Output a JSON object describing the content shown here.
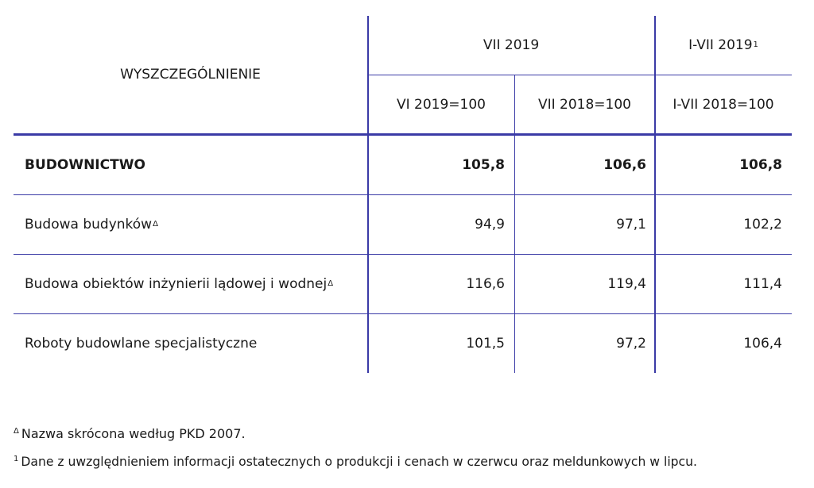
{
  "table": {
    "header": {
      "stub": "WYSZCZEGÓLNIENIE",
      "group_label": "VII 2019",
      "cumulative_label": "I-VII 2019",
      "cumulative_mark": "1",
      "col1": "VI 2019=100",
      "col2": "VII 2018=100",
      "col3": "I-VII 2018=100"
    },
    "rows": [
      {
        "label": "BUDOWNICTWO",
        "mark": "",
        "v1": "105,8",
        "v2": "106,6",
        "v3": "106,8"
      },
      {
        "label": "Budowa budynków",
        "mark": "Δ",
        "v1": "94,9",
        "v2": "97,1",
        "v3": "102,2"
      },
      {
        "label": "Budowa obiektów inżynierii lądowej i wodnej",
        "mark": "Δ",
        "v1": "116,6",
        "v2": "119,4",
        "v3": "111,4"
      },
      {
        "label": "Roboty budowlane specjalistyczne",
        "mark": "",
        "v1": "101,5",
        "v2": "97,2",
        "v3": "106,4"
      }
    ]
  },
  "footnotes": [
    {
      "mark": "Δ",
      "text": "Nazwa skrócona według PKD 2007."
    },
    {
      "mark": "1",
      "text": "Dane z uwzględnieniem informacji ostatecznych o produkcji i cenach w czerwcu oraz meldunkowych w lipcu."
    }
  ],
  "colors": {
    "rule": "#3a3aa6",
    "text": "#1a1a1a"
  }
}
